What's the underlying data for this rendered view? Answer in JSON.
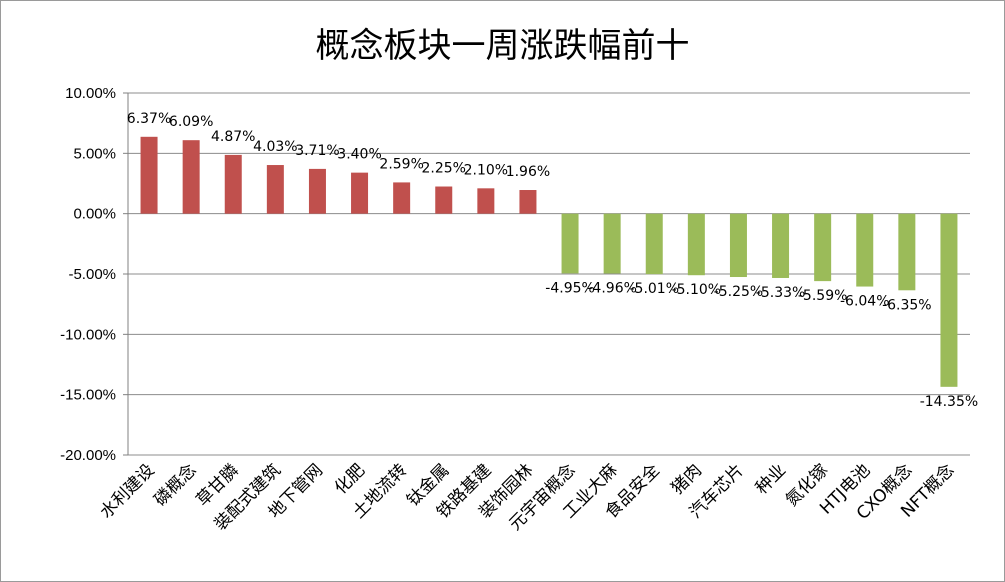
{
  "chart_data": {
    "type": "bar",
    "title": "概念板块一周涨跌幅前十",
    "xlabel": "",
    "ylabel": "",
    "ylim": [
      -20,
      10
    ],
    "yticks": [
      "10.00%",
      "5.00%",
      "0.00%",
      "-5.00%",
      "-10.00%",
      "-15.00%",
      "-20.00%"
    ],
    "grid": true,
    "legend": "none",
    "colors": {
      "positive": "#c0504d",
      "negative": "#9bbb59",
      "grid": "#8c8c8c",
      "axis": "#808080"
    },
    "categories": [
      "水利建设",
      "磷概念",
      "草甘膦",
      "装配式建筑",
      "地下管网",
      "化肥",
      "土地流转",
      "钛金属",
      "铁路基建",
      "装饰园林",
      "元宇宙概念",
      "工业大麻",
      "食品安全",
      "猪肉",
      "汽车芯片",
      "种业",
      "氮化镓",
      "HTJ电池",
      "CXO概念",
      "NFT概念"
    ],
    "values": [
      6.37,
      6.09,
      4.87,
      4.03,
      3.71,
      3.4,
      2.59,
      2.25,
      2.1,
      1.96,
      -4.95,
      -4.96,
      -5.01,
      -5.1,
      -5.25,
      -5.33,
      -5.59,
      -6.04,
      -6.35,
      -14.35
    ],
    "labels": [
      "6.37%",
      "6.09%",
      "4.87%",
      "4.03%",
      "3.71%",
      "3.40%",
      "2.59%",
      "2.25%",
      "2.10%",
      "1.96%",
      "-4.95%",
      "-4.96%",
      "-5.01%",
      "-5.10%",
      "-5.25%",
      "-5.33%",
      "-5.59%",
      "-6.04%",
      "-6.35%",
      "-14.35%"
    ]
  }
}
